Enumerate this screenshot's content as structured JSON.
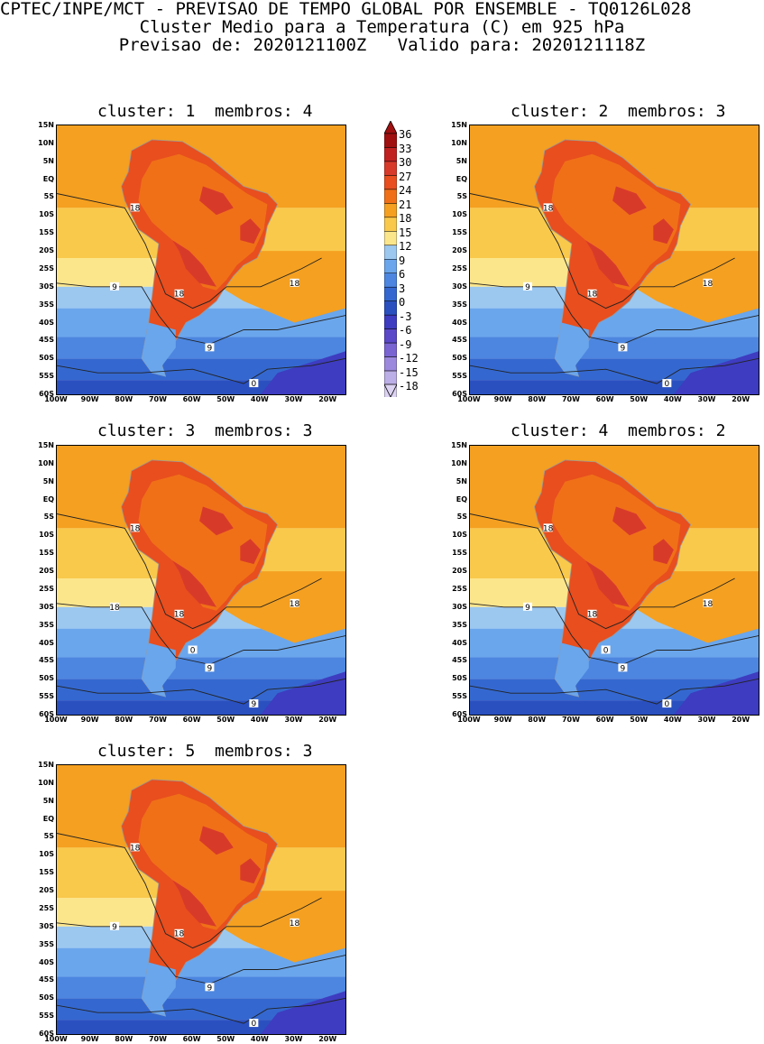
{
  "header": {
    "line1": "CPTEC/INPE/MCT - PREVISAO DE TEMPO GLOBAL POR ENSEMBLE - TQ0126L028",
    "line2": "Cluster Medio para a Temperatura (C) em 925 hPa",
    "line3": "Previsao de: 2020121100Z   Valido para: 2020121118Z"
  },
  "panels": [
    {
      "title": "cluster: 1  membros: 4"
    },
    {
      "title": "cluster: 2  membros: 3"
    },
    {
      "title": "cluster: 3  membros: 3"
    },
    {
      "title": "cluster: 4  membros: 2"
    },
    {
      "title": "cluster: 5  membros: 3"
    }
  ],
  "axes": {
    "lat_labels": [
      "15N",
      "10N",
      "5N",
      "EQ",
      "5S",
      "10S",
      "15S",
      "20S",
      "25S",
      "30S",
      "35S",
      "40S",
      "45S",
      "50S",
      "55S",
      "60S"
    ],
    "lon_labels": [
      "100W",
      "90W",
      "80W",
      "70W",
      "60W",
      "50W",
      "40W",
      "30W",
      "20W"
    ]
  },
  "colorbar": {
    "labels": [
      "36",
      "33",
      "30",
      "27",
      "24",
      "21",
      "18",
      "15",
      "12",
      "9",
      "6",
      "3",
      "0",
      "-3",
      "-6",
      "-9",
      "-12",
      "-15",
      "-18"
    ],
    "colors": [
      "#a01010",
      "#c02020",
      "#d83a2a",
      "#e84e1e",
      "#f07018",
      "#f5a020",
      "#f9c94c",
      "#fce68c",
      "#9cc8f0",
      "#6aa6ec",
      "#4c86e0",
      "#3468d0",
      "#2a50c0",
      "#3e3cc0",
      "#5a48c8",
      "#7a64d2",
      "#9c88dc",
      "#bcaee6",
      "#dcd2f2"
    ]
  },
  "contour_labels": {
    "c1": [
      "18",
      "18",
      "18",
      "9",
      "9",
      "0"
    ],
    "c2": [
      "18",
      "18",
      "18",
      "9",
      "9",
      "0"
    ],
    "c3": [
      "18",
      "18",
      "18",
      "18",
      "9",
      "9",
      "0"
    ],
    "c4": [
      "18",
      "18",
      "18",
      "9",
      "9",
      "0",
      "0"
    ],
    "c5": [
      "18",
      "18",
      "18",
      "9",
      "9",
      "0"
    ]
  }
}
